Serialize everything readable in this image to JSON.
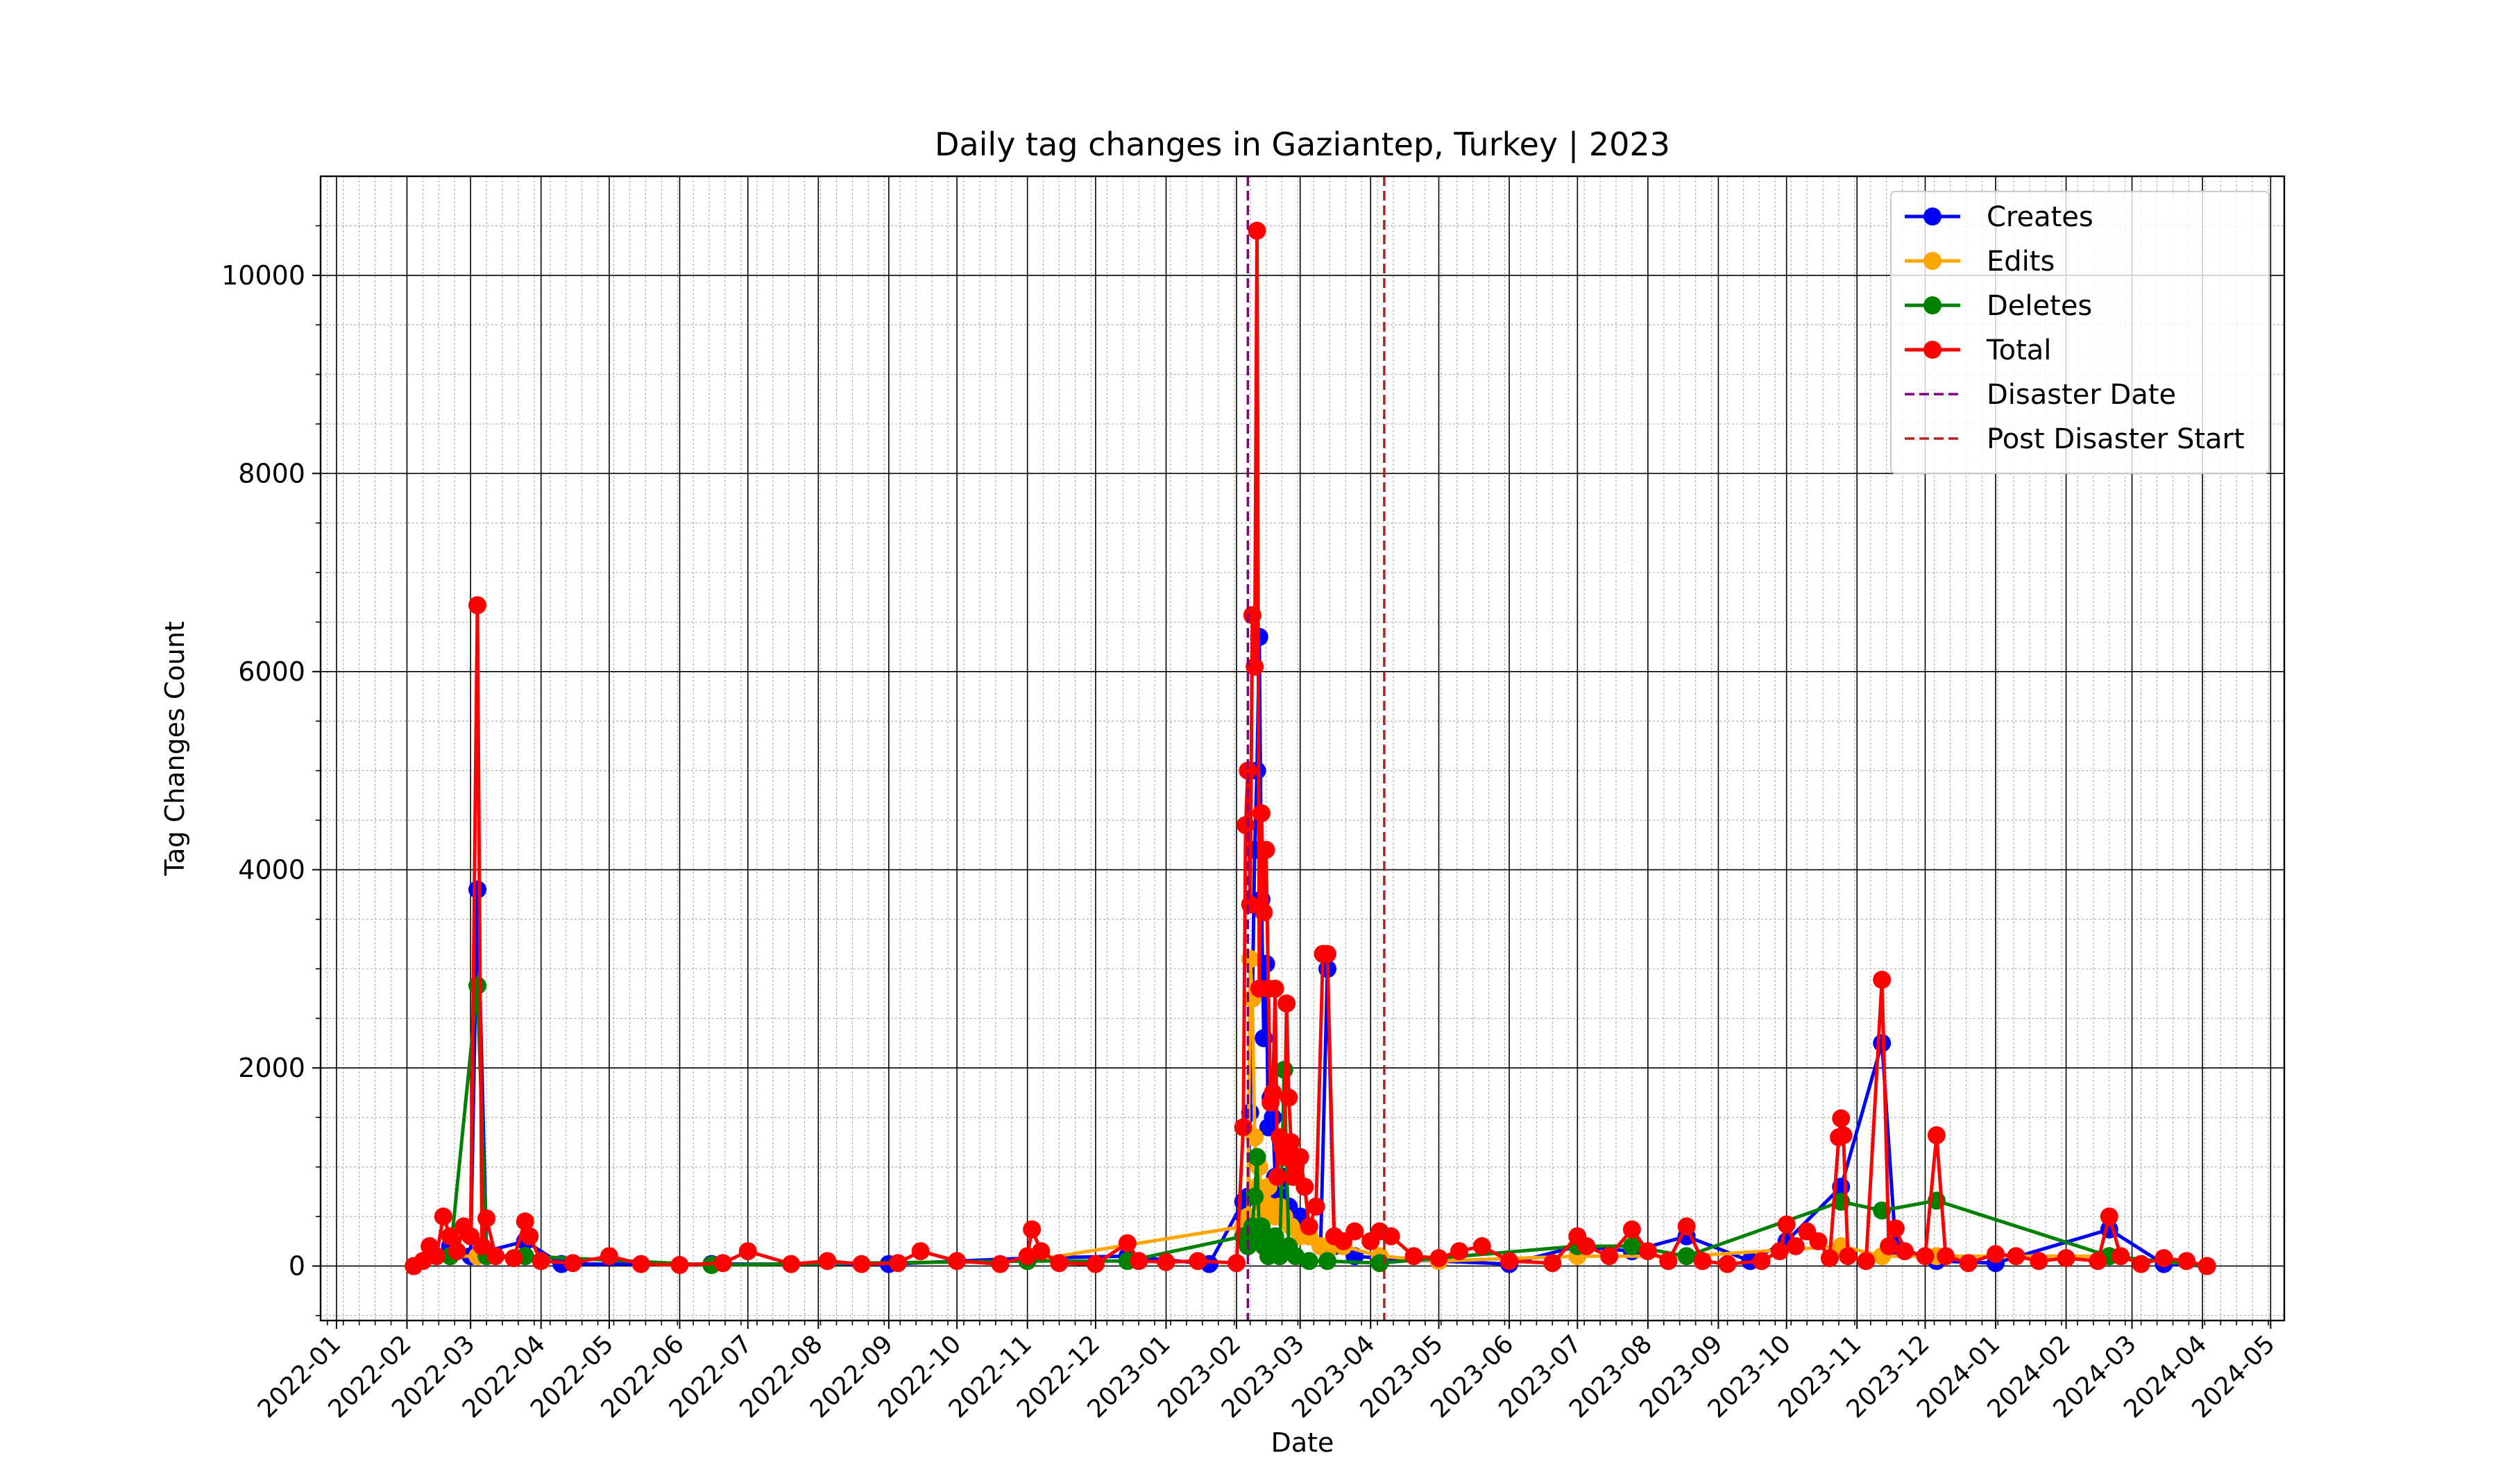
{
  "chart_data": {
    "type": "line",
    "title": "Daily tag changes in Gaziantep, Turkey | 2023",
    "xlabel": "Date",
    "ylabel": "Tag Changes Count",
    "x_range": [
      "2021-12-25",
      "2024-05-07"
    ],
    "ylim": [
      -550,
      11000
    ],
    "y_ticks": [
      0,
      2000,
      4000,
      6000,
      8000,
      10000
    ],
    "x_ticks": [
      "2022-01",
      "2022-02",
      "2022-03",
      "2022-04",
      "2022-05",
      "2022-06",
      "2022-07",
      "2022-08",
      "2022-09",
      "2022-10",
      "2022-11",
      "2022-12",
      "2023-01",
      "2023-02",
      "2023-03",
      "2023-04",
      "2023-05",
      "2023-06",
      "2023-07",
      "2023-08",
      "2023-09",
      "2023-10",
      "2023-11",
      "2023-12",
      "2024-01",
      "2024-02",
      "2024-03",
      "2024-04",
      "2024-05"
    ],
    "grid": "major and minor",
    "legend_position": "top-right",
    "vlines": [
      {
        "name": "Disaster Date",
        "date": "2023-02-06",
        "color": "#800080",
        "style": "dashed"
      },
      {
        "name": "Post Disaster Start",
        "date": "2023-04-07",
        "color": "#b22222",
        "style": "dashed"
      }
    ],
    "series": [
      {
        "name": "Creates",
        "color": "#0000ff",
        "points": [
          [
            "2022-02-04",
            0
          ],
          [
            "2022-02-20",
            200
          ],
          [
            "2022-03-01",
            100
          ],
          [
            "2022-03-04",
            3800
          ],
          [
            "2022-03-08",
            150
          ],
          [
            "2022-03-25",
            250
          ],
          [
            "2022-04-10",
            20
          ],
          [
            "2022-06-15",
            20
          ],
          [
            "2022-09-01",
            20
          ],
          [
            "2022-11-01",
            80
          ],
          [
            "2022-12-15",
            100
          ],
          [
            "2023-01-20",
            20
          ],
          [
            "2023-02-04",
            650
          ],
          [
            "2023-02-06",
            700
          ],
          [
            "2023-02-07",
            1550
          ],
          [
            "2023-02-08",
            2700
          ],
          [
            "2023-02-09",
            4200
          ],
          [
            "2023-02-10",
            5000
          ],
          [
            "2023-02-11",
            6350
          ],
          [
            "2023-02-12",
            3700
          ],
          [
            "2023-02-13",
            2300
          ],
          [
            "2023-02-14",
            3050
          ],
          [
            "2023-02-15",
            1400
          ],
          [
            "2023-02-16",
            1700
          ],
          [
            "2023-02-17",
            1500
          ],
          [
            "2023-02-18",
            900
          ],
          [
            "2023-02-20",
            700
          ],
          [
            "2023-02-22",
            900
          ],
          [
            "2023-02-24",
            600
          ],
          [
            "2023-02-27",
            400
          ],
          [
            "2023-03-01",
            500
          ],
          [
            "2023-03-05",
            300
          ],
          [
            "2023-03-10",
            200
          ],
          [
            "2023-03-13",
            3000
          ],
          [
            "2023-03-16",
            200
          ],
          [
            "2023-03-25",
            100
          ],
          [
            "2023-04-05",
            80
          ],
          [
            "2023-05-01",
            50
          ],
          [
            "2023-06-01",
            20
          ],
          [
            "2023-07-01",
            200
          ],
          [
            "2023-07-25",
            150
          ],
          [
            "2023-08-18",
            300
          ],
          [
            "2023-09-15",
            50
          ],
          [
            "2023-10-01",
            250
          ],
          [
            "2023-10-25",
            800
          ],
          [
            "2023-11-12",
            2250
          ],
          [
            "2023-11-18",
            200
          ],
          [
            "2023-12-06",
            50
          ],
          [
            "2024-01-01",
            30
          ],
          [
            "2024-02-20",
            370
          ],
          [
            "2024-03-15",
            20
          ],
          [
            "2024-04-03",
            0
          ]
        ]
      },
      {
        "name": "Edits",
        "color": "#ffa500",
        "points": [
          [
            "2022-02-04",
            0
          ],
          [
            "2022-02-20",
            100
          ],
          [
            "2022-03-04",
            100
          ],
          [
            "2022-03-25",
            100
          ],
          [
            "2022-06-15",
            10
          ],
          [
            "2022-11-01",
            50
          ],
          [
            "2023-02-04",
            400
          ],
          [
            "2023-02-06",
            500
          ],
          [
            "2023-02-07",
            3100
          ],
          [
            "2023-02-08",
            2700
          ],
          [
            "2023-02-09",
            1300
          ],
          [
            "2023-02-10",
            800
          ],
          [
            "2023-02-11",
            1000
          ],
          [
            "2023-02-12",
            700
          ],
          [
            "2023-02-13",
            600
          ],
          [
            "2023-02-14",
            500
          ],
          [
            "2023-02-15",
            800
          ],
          [
            "2023-02-16",
            600
          ],
          [
            "2023-02-18",
            500
          ],
          [
            "2023-02-20",
            600
          ],
          [
            "2023-02-22",
            500
          ],
          [
            "2023-02-25",
            400
          ],
          [
            "2023-03-01",
            300
          ],
          [
            "2023-03-05",
            300
          ],
          [
            "2023-03-10",
            200
          ],
          [
            "2023-03-13",
            150
          ],
          [
            "2023-03-20",
            200
          ],
          [
            "2023-04-05",
            100
          ],
          [
            "2023-05-01",
            50
          ],
          [
            "2023-07-01",
            100
          ],
          [
            "2023-08-18",
            100
          ],
          [
            "2023-10-25",
            200
          ],
          [
            "2023-11-12",
            100
          ],
          [
            "2023-12-06",
            100
          ],
          [
            "2024-02-20",
            100
          ],
          [
            "2024-04-03",
            0
          ]
        ]
      },
      {
        "name": "Deletes",
        "color": "#008000",
        "points": [
          [
            "2022-02-04",
            0
          ],
          [
            "2022-02-20",
            100
          ],
          [
            "2022-03-04",
            2830
          ],
          [
            "2022-03-08",
            100
          ],
          [
            "2022-03-25",
            100
          ],
          [
            "2022-06-15",
            10
          ],
          [
            "2022-11-01",
            50
          ],
          [
            "2022-12-15",
            50
          ],
          [
            "2023-02-04",
            300
          ],
          [
            "2023-02-06",
            200
          ],
          [
            "2023-02-08",
            400
          ],
          [
            "2023-02-09",
            700
          ],
          [
            "2023-02-10",
            1100
          ],
          [
            "2023-02-11",
            300
          ],
          [
            "2023-02-12",
            400
          ],
          [
            "2023-02-13",
            200
          ],
          [
            "2023-02-14",
            300
          ],
          [
            "2023-02-15",
            100
          ],
          [
            "2023-02-16",
            200
          ],
          [
            "2023-02-18",
            300
          ],
          [
            "2023-02-20",
            100
          ],
          [
            "2023-02-22",
            1980
          ],
          [
            "2023-02-24",
            200
          ],
          [
            "2023-02-27",
            100
          ],
          [
            "2023-03-05",
            50
          ],
          [
            "2023-03-13",
            50
          ],
          [
            "2023-04-05",
            30
          ],
          [
            "2023-07-01",
            200
          ],
          [
            "2023-07-25",
            200
          ],
          [
            "2023-08-18",
            100
          ],
          [
            "2023-10-25",
            650
          ],
          [
            "2023-11-12",
            560
          ],
          [
            "2023-12-06",
            660
          ],
          [
            "2024-02-20",
            100
          ],
          [
            "2024-04-03",
            0
          ]
        ]
      },
      {
        "name": "Total",
        "color": "#ff0000",
        "points": [
          [
            "2022-02-04",
            0
          ],
          [
            "2022-02-08",
            50
          ],
          [
            "2022-02-11",
            200
          ],
          [
            "2022-02-14",
            100
          ],
          [
            "2022-02-17",
            500
          ],
          [
            "2022-02-20",
            300
          ],
          [
            "2022-02-23",
            150
          ],
          [
            "2022-02-26",
            400
          ],
          [
            "2022-03-01",
            300
          ],
          [
            "2022-03-04",
            6670
          ],
          [
            "2022-03-06",
            200
          ],
          [
            "2022-03-08",
            480
          ],
          [
            "2022-03-12",
            100
          ],
          [
            "2022-03-20",
            80
          ],
          [
            "2022-03-25",
            450
          ],
          [
            "2022-03-27",
            300
          ],
          [
            "2022-04-01",
            50
          ],
          [
            "2022-04-15",
            30
          ],
          [
            "2022-05-01",
            100
          ],
          [
            "2022-05-15",
            20
          ],
          [
            "2022-06-01",
            10
          ],
          [
            "2022-06-20",
            30
          ],
          [
            "2022-07-01",
            150
          ],
          [
            "2022-07-20",
            20
          ],
          [
            "2022-08-05",
            50
          ],
          [
            "2022-08-20",
            20
          ],
          [
            "2022-09-05",
            30
          ],
          [
            "2022-09-15",
            150
          ],
          [
            "2022-10-01",
            50
          ],
          [
            "2022-10-20",
            20
          ],
          [
            "2022-11-01",
            100
          ],
          [
            "2022-11-03",
            370
          ],
          [
            "2022-11-07",
            150
          ],
          [
            "2022-11-15",
            30
          ],
          [
            "2022-12-01",
            20
          ],
          [
            "2022-12-15",
            230
          ],
          [
            "2022-12-20",
            50
          ],
          [
            "2023-01-01",
            40
          ],
          [
            "2023-01-15",
            50
          ],
          [
            "2023-02-01",
            30
          ],
          [
            "2023-02-04",
            1400
          ],
          [
            "2023-02-05",
            4450
          ],
          [
            "2023-02-06",
            5000
          ],
          [
            "2023-02-07",
            3650
          ],
          [
            "2023-02-08",
            6570
          ],
          [
            "2023-02-09",
            6050
          ],
          [
            "2023-02-10",
            10450
          ],
          [
            "2023-02-11",
            2800
          ],
          [
            "2023-02-12",
            4570
          ],
          [
            "2023-02-13",
            3570
          ],
          [
            "2023-02-14",
            4200
          ],
          [
            "2023-02-15",
            2800
          ],
          [
            "2023-02-16",
            1650
          ],
          [
            "2023-02-17",
            1750
          ],
          [
            "2023-02-18",
            2800
          ],
          [
            "2023-02-19",
            900
          ],
          [
            "2023-02-20",
            1300
          ],
          [
            "2023-02-21",
            1200
          ],
          [
            "2023-02-22",
            1100
          ],
          [
            "2023-02-23",
            2650
          ],
          [
            "2023-02-24",
            1700
          ],
          [
            "2023-02-25",
            1250
          ],
          [
            "2023-02-26",
            900
          ],
          [
            "2023-02-27",
            1000
          ],
          [
            "2023-03-01",
            1100
          ],
          [
            "2023-03-03",
            800
          ],
          [
            "2023-03-05",
            400
          ],
          [
            "2023-03-08",
            600
          ],
          [
            "2023-03-11",
            3150
          ],
          [
            "2023-03-13",
            3150
          ],
          [
            "2023-03-16",
            300
          ],
          [
            "2023-03-20",
            250
          ],
          [
            "2023-03-25",
            350
          ],
          [
            "2023-04-01",
            250
          ],
          [
            "2023-04-05",
            350
          ],
          [
            "2023-04-10",
            300
          ],
          [
            "2023-04-20",
            100
          ],
          [
            "2023-05-01",
            80
          ],
          [
            "2023-05-10",
            150
          ],
          [
            "2023-05-20",
            200
          ],
          [
            "2023-06-01",
            50
          ],
          [
            "2023-06-20",
            30
          ],
          [
            "2023-07-01",
            300
          ],
          [
            "2023-07-05",
            200
          ],
          [
            "2023-07-15",
            100
          ],
          [
            "2023-07-25",
            370
          ],
          [
            "2023-08-01",
            150
          ],
          [
            "2023-08-10",
            50
          ],
          [
            "2023-08-18",
            400
          ],
          [
            "2023-08-25",
            50
          ],
          [
            "2023-09-05",
            20
          ],
          [
            "2023-09-20",
            50
          ],
          [
            "2023-09-28",
            150
          ],
          [
            "2023-10-01",
            420
          ],
          [
            "2023-10-05",
            200
          ],
          [
            "2023-10-10",
            350
          ],
          [
            "2023-10-15",
            250
          ],
          [
            "2023-10-20",
            80
          ],
          [
            "2023-10-24",
            1300
          ],
          [
            "2023-10-25",
            1490
          ],
          [
            "2023-10-26",
            1320
          ],
          [
            "2023-10-28",
            100
          ],
          [
            "2023-11-05",
            50
          ],
          [
            "2023-11-12",
            2890
          ],
          [
            "2023-11-15",
            200
          ],
          [
            "2023-11-18",
            380
          ],
          [
            "2023-11-22",
            150
          ],
          [
            "2023-12-01",
            100
          ],
          [
            "2023-12-06",
            1320
          ],
          [
            "2023-12-10",
            100
          ],
          [
            "2023-12-20",
            30
          ],
          [
            "2024-01-01",
            120
          ],
          [
            "2024-01-10",
            100
          ],
          [
            "2024-01-20",
            50
          ],
          [
            "2024-02-01",
            80
          ],
          [
            "2024-02-15",
            50
          ],
          [
            "2024-02-20",
            500
          ],
          [
            "2024-02-25",
            100
          ],
          [
            "2024-03-05",
            20
          ],
          [
            "2024-03-15",
            80
          ],
          [
            "2024-03-25",
            50
          ],
          [
            "2024-04-03",
            0
          ]
        ]
      }
    ]
  }
}
